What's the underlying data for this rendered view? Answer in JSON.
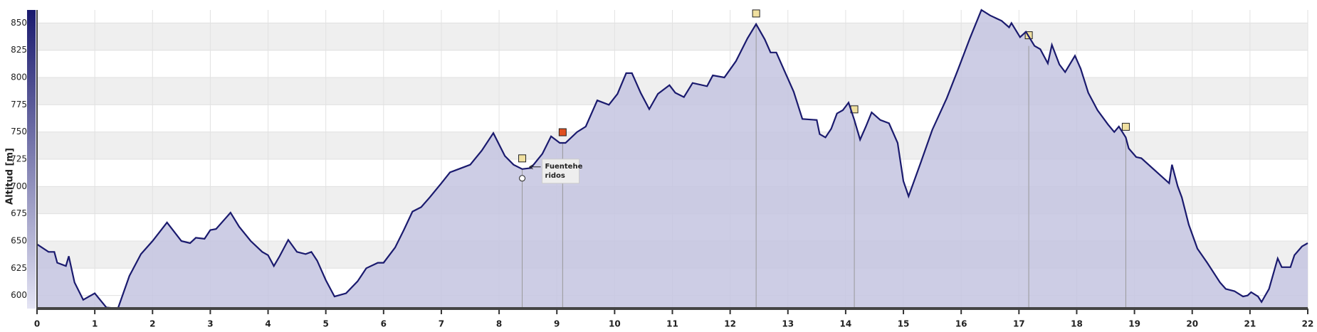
{
  "chart_data": {
    "type": "area",
    "ylabel": "Altitud [m]",
    "xlim": [
      0,
      22
    ],
    "xticks": [
      0,
      1,
      2,
      3,
      4,
      5,
      6,
      7,
      8,
      9,
      10,
      11,
      12,
      13,
      14,
      15,
      16,
      17,
      18,
      19,
      20,
      21,
      22
    ],
    "ylim": [
      588,
      862
    ],
    "yticks": [
      600,
      625,
      650,
      675,
      700,
      725,
      750,
      775,
      800,
      825,
      850
    ],
    "grid": true,
    "x": [
      0,
      0.2,
      0.3,
      0.35,
      0.5,
      0.55,
      0.65,
      0.8,
      1.0,
      1.2,
      1.4,
      1.6,
      1.8,
      2.0,
      2.25,
      2.5,
      2.65,
      2.75,
      2.9,
      3.0,
      3.1,
      3.25,
      3.35,
      3.5,
      3.7,
      3.9,
      4.0,
      4.1,
      4.2,
      4.35,
      4.5,
      4.65,
      4.75,
      4.85,
      5.0,
      5.15,
      5.35,
      5.55,
      5.7,
      5.9,
      6.0,
      6.2,
      6.35,
      6.5,
      6.65,
      6.8,
      7.0,
      7.15,
      7.3,
      7.5,
      7.7,
      7.9,
      8.1,
      8.25,
      8.4,
      8.55,
      8.75,
      8.9,
      9.05,
      9.15,
      9.35,
      9.5,
      9.7,
      9.9,
      10.05,
      10.2,
      10.3,
      10.45,
      10.6,
      10.75,
      10.95,
      11.05,
      11.2,
      11.35,
      11.6,
      11.7,
      11.9,
      12.1,
      12.3,
      12.45,
      12.6,
      12.7,
      12.8,
      12.95,
      13.1,
      13.25,
      13.5,
      13.55,
      13.65,
      13.75,
      13.85,
      13.95,
      14.05,
      14.15,
      14.25,
      14.35,
      14.45,
      14.6,
      14.75,
      14.9,
      15.0,
      15.09,
      15.3,
      15.5,
      15.75,
      15.95,
      16.15,
      16.35,
      16.5,
      16.7,
      16.83,
      16.87,
      17.02,
      17.12,
      17.27,
      17.37,
      17.5,
      17.57,
      17.7,
      17.8,
      17.97,
      18.07,
      18.2,
      18.36,
      18.54,
      18.65,
      18.73,
      18.85,
      18.9,
      19.03,
      19.12,
      19.6,
      19.65,
      19.75,
      19.82,
      19.94,
      20.09,
      20.26,
      20.48,
      20.58,
      20.73,
      20.88,
      20.96,
      21.02,
      21.14,
      21.2,
      21.33,
      21.48,
      21.55,
      21.7,
      21.77,
      21.9,
      22
    ],
    "series": [
      {
        "name": "Altitud",
        "color": "#1a1a6e",
        "fill": "#c4c4e0",
        "values": [
          647,
          640,
          640,
          630,
          627,
          636,
          612,
          596,
          602,
          589,
          588,
          618,
          638,
          650,
          667,
          650,
          648,
          653,
          652,
          660,
          661,
          670,
          676,
          663,
          650,
          640,
          637,
          627,
          636,
          651,
          640,
          638,
          640,
          632,
          614,
          599,
          602,
          613,
          625,
          630,
          630,
          644,
          660,
          677,
          681,
          690,
          703,
          713,
          716,
          720,
          733,
          749,
          728,
          720,
          716,
          717,
          730,
          746,
          740,
          740,
          750,
          755,
          779,
          775,
          785,
          804,
          804,
          786,
          771,
          785,
          793,
          786,
          782,
          795,
          792,
          802,
          800,
          815,
          836,
          849,
          835,
          823,
          823,
          805,
          787,
          762,
          761,
          748,
          745,
          753,
          767,
          770,
          777,
          761,
          743,
          755,
          768,
          761,
          758,
          740,
          705,
          691,
          722,
          752,
          781,
          808,
          836,
          862,
          857,
          852,
          846,
          850,
          837,
          842,
          829,
          826,
          813,
          830,
          812,
          805,
          820,
          808,
          786,
          770,
          757,
          750,
          755,
          745,
          735,
          727,
          726,
          703,
          720,
          700,
          690,
          665,
          643,
          630,
          612,
          606,
          604,
          599,
          600,
          603,
          599,
          594,
          606,
          634,
          626,
          626,
          637,
          645,
          648
        ]
      }
    ],
    "waypoints": [
      8.4,
      9.1,
      12.45,
      14.15,
      17.17,
      18.85
    ],
    "annotation": [
      "Fuentehe",
      "ridos"
    ]
  }
}
